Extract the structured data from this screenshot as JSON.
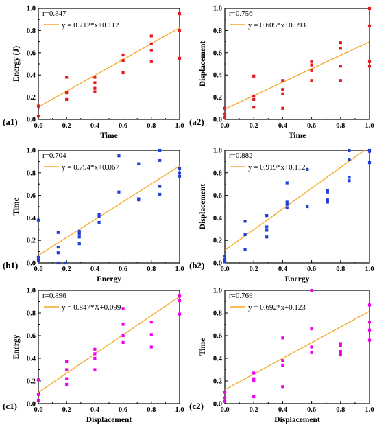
{
  "chart_data": [
    {
      "panel_label": "(a1)",
      "type": "scatter",
      "xlabel": "Time",
      "ylabel": "Energy (J)",
      "xlim": [
        0,
        1
      ],
      "ylim": [
        0,
        1
      ],
      "xticks": [
        "0.0",
        "0.2",
        "0.4",
        "0.6",
        "0.8",
        "1.0"
      ],
      "yticks": [
        "0.0",
        "0.2",
        "0.4",
        "0.6",
        "0.8",
        "1.0"
      ],
      "point_color": "#e41a1c",
      "marker": "square",
      "r_label": "r=0.847",
      "fit_label": "y = 0.712*x+0.112",
      "fit_line": {
        "slope": 0.712,
        "intercept": 0.112
      },
      "fit_color": "#f5a623",
      "points": [
        [
          0.0,
          0.12
        ],
        [
          0.0,
          0.03
        ],
        [
          0.2,
          0.38
        ],
        [
          0.2,
          0.24
        ],
        [
          0.2,
          0.18
        ],
        [
          0.4,
          0.38
        ],
        [
          0.4,
          0.33
        ],
        [
          0.4,
          0.28
        ],
        [
          0.4,
          0.25
        ],
        [
          0.6,
          0.58
        ],
        [
          0.6,
          0.53
        ],
        [
          0.6,
          0.42
        ],
        [
          0.8,
          0.75
        ],
        [
          0.8,
          0.68
        ],
        [
          0.8,
          0.62
        ],
        [
          0.8,
          0.52
        ],
        [
          1.0,
          0.95
        ],
        [
          1.0,
          0.8
        ],
        [
          1.0,
          0.55
        ]
      ]
    },
    {
      "panel_label": "(a2)",
      "type": "scatter",
      "xlabel": "Time",
      "ylabel": "Displacement",
      "xlim": [
        0,
        1
      ],
      "ylim": [
        0,
        1
      ],
      "xticks": [
        "0.0",
        "0.2",
        "0.4",
        "0.6",
        "0.8",
        "1.0"
      ],
      "yticks": [
        "0.0",
        "0.2",
        "0.4",
        "0.6",
        "0.8",
        "1.0"
      ],
      "point_color": "#e41a1c",
      "marker": "square",
      "r_label": "r=0.756",
      "fit_label": "y = 0.605*x+0.093",
      "fit_line": {
        "slope": 0.605,
        "intercept": 0.093
      },
      "fit_color": "#f5a623",
      "points": [
        [
          0.0,
          0.1
        ],
        [
          0.0,
          0.05
        ],
        [
          0.0,
          0.02
        ],
        [
          0.2,
          0.39
        ],
        [
          0.2,
          0.21
        ],
        [
          0.2,
          0.18
        ],
        [
          0.2,
          0.11
        ],
        [
          0.4,
          0.35
        ],
        [
          0.4,
          0.27
        ],
        [
          0.4,
          0.23
        ],
        [
          0.4,
          0.1
        ],
        [
          0.6,
          0.52
        ],
        [
          0.6,
          0.49
        ],
        [
          0.6,
          0.44
        ],
        [
          0.6,
          0.35
        ],
        [
          0.8,
          0.69
        ],
        [
          0.8,
          0.64
        ],
        [
          0.8,
          0.48
        ],
        [
          0.8,
          0.35
        ],
        [
          1.0,
          1.0
        ],
        [
          1.0,
          0.84
        ],
        [
          1.0,
          0.52
        ],
        [
          1.0,
          0.48
        ]
      ]
    },
    {
      "panel_label": "(b1)",
      "type": "scatter",
      "xlabel": "Energy",
      "ylabel": "Time",
      "xlim": [
        0,
        1
      ],
      "ylim": [
        0,
        1
      ],
      "xticks": [
        "0.0",
        "0.2",
        "0.4",
        "0.6",
        "0.8",
        "1.0"
      ],
      "yticks": [
        "0.0",
        "0.2",
        "0.4",
        "0.6",
        "0.8",
        "1.0"
      ],
      "point_color": "#1f3fd6",
      "marker": "square",
      "r_label": "r=0.704",
      "fit_label": "y = 0.794*x+0.067",
      "fit_line": {
        "slope": 0.794,
        "intercept": 0.067
      },
      "fit_color": "#f5a623",
      "points": [
        [
          0.0,
          0.38
        ],
        [
          0.0,
          0.05
        ],
        [
          0.0,
          0.02
        ],
        [
          0.14,
          0.27
        ],
        [
          0.14,
          0.14
        ],
        [
          0.14,
          0.09
        ],
        [
          0.14,
          0.0
        ],
        [
          0.19,
          0.0
        ],
        [
          0.29,
          0.28
        ],
        [
          0.29,
          0.26
        ],
        [
          0.29,
          0.23
        ],
        [
          0.29,
          0.17
        ],
        [
          0.43,
          0.43
        ],
        [
          0.43,
          0.41
        ],
        [
          0.43,
          0.36
        ],
        [
          0.57,
          0.95
        ],
        [
          0.57,
          0.63
        ],
        [
          0.71,
          0.88
        ],
        [
          0.71,
          0.57
        ],
        [
          0.71,
          0.56
        ],
        [
          0.86,
          1.0
        ],
        [
          0.86,
          0.91
        ],
        [
          0.86,
          0.68
        ],
        [
          0.86,
          0.61
        ],
        [
          1.0,
          0.84
        ],
        [
          1.0,
          0.8
        ],
        [
          1.0,
          0.77
        ]
      ]
    },
    {
      "panel_label": "(b2)",
      "type": "scatter",
      "xlabel": "Energy",
      "ylabel": "Displacement",
      "xlim": [
        0,
        1
      ],
      "ylim": [
        0,
        1
      ],
      "xticks": [
        "0.0",
        "0.2",
        "0.4",
        "0.6",
        "0.8",
        "1.0"
      ],
      "yticks": [
        "0.0",
        "0.2",
        "0.4",
        "0.6",
        "0.8",
        "1.0"
      ],
      "point_color": "#1f3fd6",
      "marker": "square",
      "r_label": "r=0.882",
      "fit_label": "y = 0.919*x+0.112",
      "fit_line": {
        "slope": 0.919,
        "intercept": 0.112
      },
      "fit_color": "#f5a623",
      "points": [
        [
          0.0,
          0.06
        ],
        [
          0.0,
          0.03
        ],
        [
          0.0,
          0.01
        ],
        [
          0.14,
          0.37
        ],
        [
          0.14,
          0.25
        ],
        [
          0.14,
          0.12
        ],
        [
          0.29,
          0.42
        ],
        [
          0.29,
          0.32
        ],
        [
          0.29,
          0.29
        ],
        [
          0.29,
          0.23
        ],
        [
          0.43,
          0.71
        ],
        [
          0.43,
          0.54
        ],
        [
          0.43,
          0.52
        ],
        [
          0.43,
          0.49
        ],
        [
          0.57,
          0.83
        ],
        [
          0.57,
          0.5
        ],
        [
          0.71,
          0.64
        ],
        [
          0.71,
          0.63
        ],
        [
          0.71,
          0.56
        ],
        [
          0.71,
          0.54
        ],
        [
          0.86,
          1.0
        ],
        [
          0.86,
          0.92
        ],
        [
          0.86,
          0.76
        ],
        [
          0.86,
          0.73
        ],
        [
          1.0,
          1.0
        ],
        [
          1.0,
          0.99
        ],
        [
          1.0,
          0.89
        ]
      ]
    },
    {
      "panel_label": "(c1)",
      "type": "scatter",
      "xlabel": "Displacement",
      "ylabel": "Energy",
      "xlim": [
        0,
        1
      ],
      "ylim": [
        0,
        1
      ],
      "xticks": [
        "0.0",
        "0.2",
        "0.4",
        "0.6",
        "0.8",
        "1.0"
      ],
      "yticks": [
        "0.0",
        "0.2",
        "0.4",
        "0.6",
        "0.8",
        "1.0"
      ],
      "point_color": "#ee00ee",
      "marker": "square",
      "r_label": "r=0.896",
      "fit_label": "y = 0.847*X+0.099",
      "fit_line": {
        "slope": 0.847,
        "intercept": 0.099
      },
      "fit_color": "#f5a623",
      "points": [
        [
          0.0,
          0.21
        ],
        [
          0.0,
          0.08
        ],
        [
          0.0,
          0.03
        ],
        [
          0.2,
          0.37
        ],
        [
          0.2,
          0.3
        ],
        [
          0.2,
          0.22
        ],
        [
          0.2,
          0.17
        ],
        [
          0.4,
          0.48
        ],
        [
          0.4,
          0.44
        ],
        [
          0.4,
          0.4
        ],
        [
          0.4,
          0.3
        ],
        [
          0.6,
          0.84
        ],
        [
          0.6,
          0.7
        ],
        [
          0.6,
          0.6
        ],
        [
          0.6,
          0.54
        ],
        [
          0.8,
          0.72
        ],
        [
          0.8,
          0.61
        ],
        [
          0.8,
          0.5
        ],
        [
          1.0,
          0.95
        ],
        [
          1.0,
          0.91
        ],
        [
          1.0,
          0.79
        ]
      ]
    },
    {
      "panel_label": "(c2)",
      "type": "scatter",
      "xlabel": "Displacement",
      "ylabel": "Time",
      "xlim": [
        0,
        1
      ],
      "ylim": [
        0,
        1
      ],
      "xticks": [
        "0.0",
        "0.2",
        "0.4",
        "0.6",
        "0.8",
        "1.0"
      ],
      "yticks": [
        "0.0",
        "0.2",
        "0.4",
        "0.6",
        "0.8",
        "1.0"
      ],
      "point_color": "#ee00ee",
      "marker": "square",
      "r_label": "r=0.769",
      "fit_label": "y = 0.692*x+0.123",
      "fit_line": {
        "slope": 0.692,
        "intercept": 0.123
      },
      "fit_color": "#f5a623",
      "points": [
        [
          0.0,
          0.1
        ],
        [
          0.0,
          0.05
        ],
        [
          0.0,
          0.02
        ],
        [
          0.2,
          0.27
        ],
        [
          0.2,
          0.22
        ],
        [
          0.2,
          0.2
        ],
        [
          0.2,
          0.06
        ],
        [
          0.4,
          0.58
        ],
        [
          0.4,
          0.38
        ],
        [
          0.4,
          0.34
        ],
        [
          0.4,
          0.15
        ],
        [
          0.6,
          1.0
        ],
        [
          0.6,
          0.66
        ],
        [
          0.6,
          0.5
        ],
        [
          0.6,
          0.45
        ],
        [
          0.8,
          0.53
        ],
        [
          0.8,
          0.51
        ],
        [
          0.8,
          0.46
        ],
        [
          0.8,
          0.43
        ],
        [
          1.0,
          0.87
        ],
        [
          1.0,
          0.72
        ],
        [
          1.0,
          0.65
        ],
        [
          1.0,
          0.56
        ]
      ]
    }
  ]
}
